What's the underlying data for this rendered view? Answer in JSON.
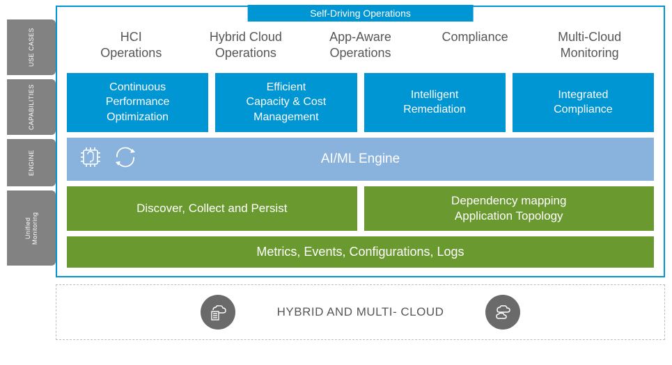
{
  "topTab": "Self-Driving Operations",
  "sideLabels": {
    "useCases": {
      "text": "USE CASES",
      "height": 80
    },
    "capabilities": {
      "text": "CAPABILITIES",
      "height": 80
    },
    "engine": {
      "text": "ENGINE",
      "height": 68
    },
    "monitoring": {
      "text": "Unified\nMonitoring",
      "height": 108
    }
  },
  "useCases": [
    "HCI\nOperations",
    "Hybrid Cloud\nOperations",
    "App-Aware\nOperations",
    "Compliance",
    "Multi-Cloud\nMonitoring"
  ],
  "capabilities": [
    "Continuous\nPerformance\nOptimization",
    "Efficient\nCapacity & Cost\nManagement",
    "Intelligent\nRemediation",
    "Integrated\nCompliance"
  ],
  "engine": {
    "label": "AI/ML Engine"
  },
  "monitoring": {
    "row1": [
      "Discover, Collect and Persist",
      "Dependency mapping\nApplication Topology"
    ],
    "row2": "Metrics, Events, Configurations, Logs"
  },
  "footer": {
    "label": "HYBRID AND MULTI- CLOUD"
  },
  "colors": {
    "brandBlue": "#0095d3",
    "engineBlue": "#89b2dc",
    "green": "#6a9a2f",
    "grayLabel": "#828282",
    "grayIcon": "#6a6a6a",
    "textGray": "#565656",
    "dashBorder": "#bcbcbc",
    "white": "#ffffff"
  }
}
